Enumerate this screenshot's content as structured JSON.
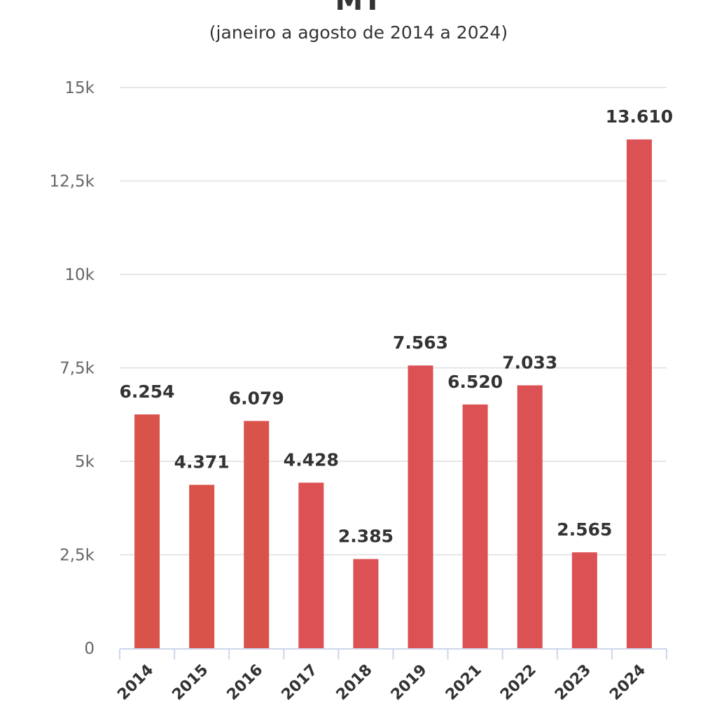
{
  "header": {
    "title": "MT",
    "subtitle": "(janeiro a agosto de 2014 a 2024)"
  },
  "chart_data": {
    "type": "bar",
    "title": "MT",
    "subtitle": "(janeiro a agosto de 2014 a 2024)",
    "xlabel": "",
    "ylabel": "",
    "categories": [
      "2014",
      "2015",
      "2016",
      "2017",
      "2018",
      "2019",
      "2021",
      "2022",
      "2023",
      "2024"
    ],
    "values": [
      6254,
      4371,
      6079,
      4428,
      2385,
      7563,
      6520,
      7033,
      2565,
      13610
    ],
    "data_labels": [
      "6.254",
      "4.371",
      "6.079",
      "4.428",
      "2.385",
      "7.563",
      "6.520",
      "7.033",
      "2.565",
      "13.610"
    ],
    "colors": [
      "#d9534a",
      "#d9534a",
      "#d9534a",
      "#dc5154",
      "#dc5154",
      "#dc5154",
      "#dc5154",
      "#dc5154",
      "#dc5154",
      "#dc5154"
    ],
    "ylim": [
      0,
      15000
    ],
    "yticks": [
      0,
      2500,
      5000,
      7500,
      10000,
      12500,
      15000
    ],
    "ytick_labels": [
      "0",
      "2,5k",
      "5k",
      "7,5k",
      "10k",
      "12,5k",
      "15k"
    ],
    "grid": true,
    "legend": "none",
    "gridline_color": "#e6e6e6",
    "axis_color": "#ccd6eb"
  }
}
